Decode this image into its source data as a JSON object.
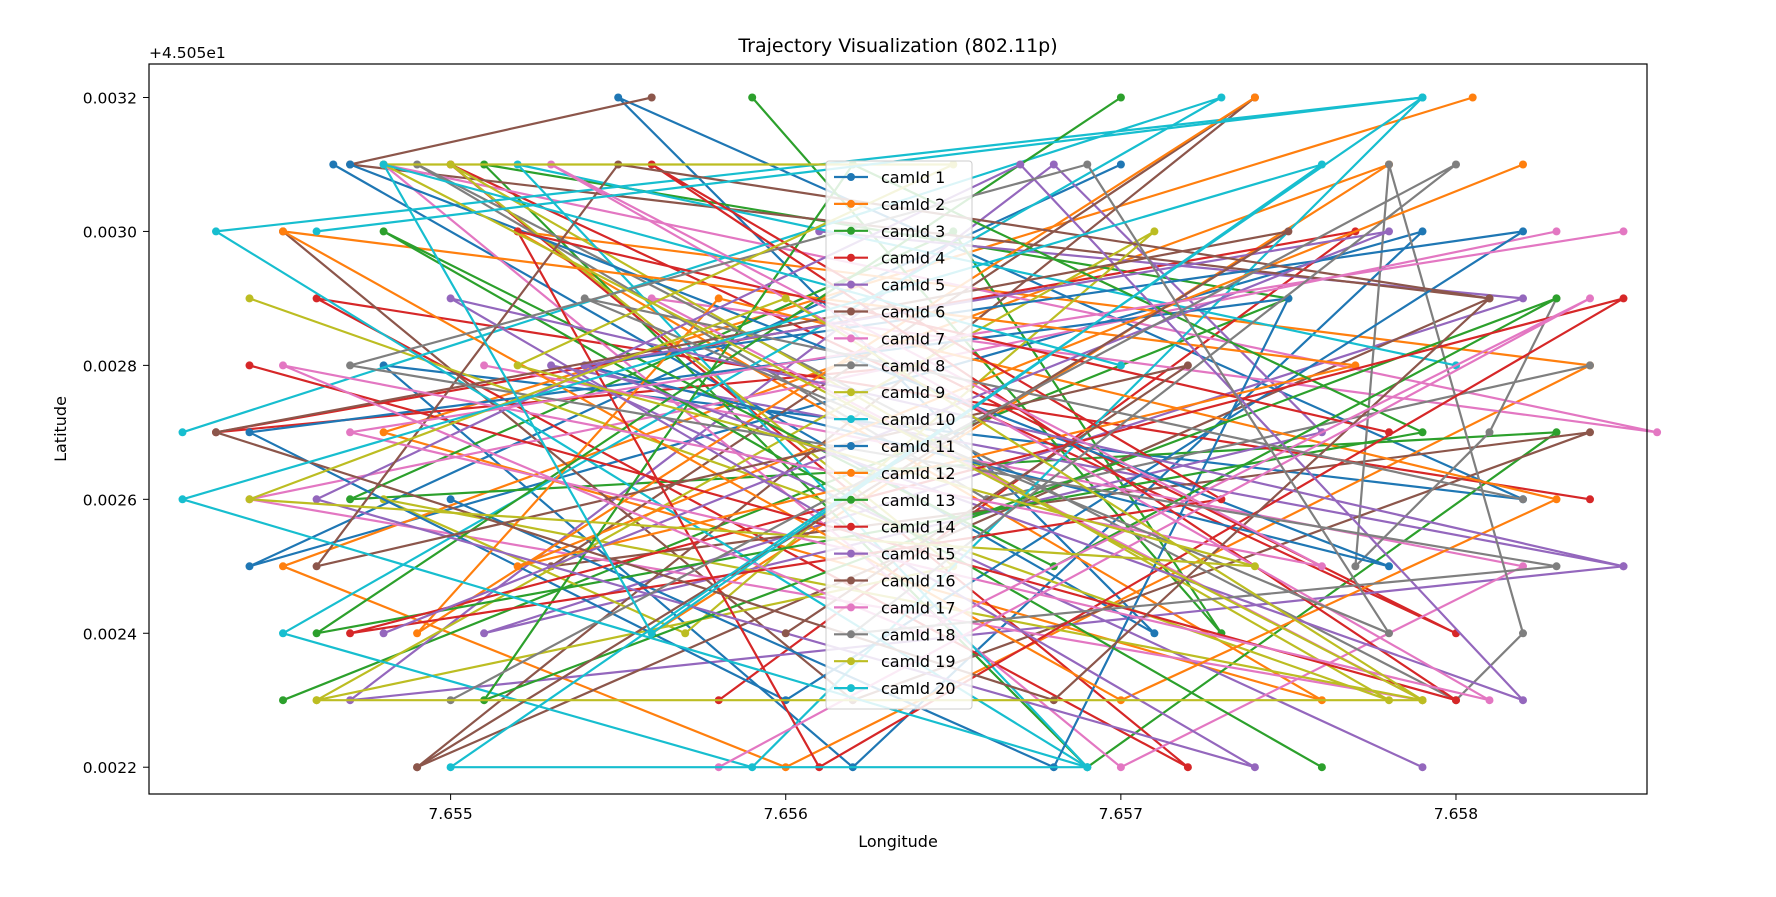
{
  "chart_data": {
    "type": "line",
    "title": "Trajectory Visualization (802.11p)",
    "xlabel": "Longitude",
    "ylabel": "Latitude",
    "y_offset_label": "+4.505e1",
    "xlim": [
      7.6541,
      7.65857
    ],
    "ylim": [
      0.00216,
      0.00325
    ],
    "xticks": [
      7.655,
      7.656,
      7.657,
      7.658
    ],
    "xtick_labels": [
      "7.655",
      "7.656",
      "7.657",
      "7.658"
    ],
    "yticks": [
      0.0022,
      0.0024,
      0.0026,
      0.0028,
      0.003,
      0.0032
    ],
    "ytick_labels": [
      "0.0022",
      "0.0024",
      "0.0026",
      "0.0028",
      "0.0030",
      "0.0032"
    ],
    "grid": false,
    "legend_position": "center",
    "series": [
      {
        "name": "camId 1",
        "color": "#1f77b4",
        "x": [
          7.65465,
          7.6571,
          7.6555,
          7.6582,
          7.6548,
          7.6562,
          7.6579,
          7.6544,
          7.657
        ],
        "y": [
          0.0031,
          0.0024,
          0.0032,
          0.0026,
          0.0028,
          0.0022,
          0.003,
          0.0025,
          0.0031
        ]
      },
      {
        "name": "camId 2",
        "color": "#ff7f0e",
        "x": [
          7.65805,
          7.6548,
          7.6576,
          7.6552,
          7.6584,
          7.656,
          7.6545,
          7.6578,
          7.6556
        ],
        "y": [
          0.0032,
          0.0027,
          0.0023,
          0.003,
          0.0028,
          0.0022,
          0.0025,
          0.0031,
          0.0024
        ]
      },
      {
        "name": "camId 3",
        "color": "#2ca02c",
        "x": [
          7.6545,
          7.6575,
          7.6551,
          7.6569,
          7.6583,
          7.6547,
          7.6565,
          7.6573,
          7.6559
        ],
        "y": [
          0.0023,
          0.0029,
          0.0031,
          0.0022,
          0.0027,
          0.0026,
          0.003,
          0.0024,
          0.0032
        ]
      },
      {
        "name": "camId 4",
        "color": "#d62728",
        "x": [
          7.6584,
          7.6546,
          7.6572,
          7.655,
          7.658,
          7.6564,
          7.6543,
          7.6577,
          7.6558
        ],
        "y": [
          0.0026,
          0.0029,
          0.0022,
          0.0031,
          0.0024,
          0.0028,
          0.0027,
          0.003,
          0.0023
        ]
      },
      {
        "name": "camId 5",
        "color": "#9467bd",
        "x": [
          7.6579,
          7.6553,
          7.6585,
          7.6547,
          7.6568,
          7.6576,
          7.6551,
          7.6582,
          7.6561
        ],
        "y": [
          0.0022,
          0.0028,
          0.0025,
          0.0023,
          0.0031,
          0.0027,
          0.0024,
          0.0029,
          0.003
        ]
      },
      {
        "name": "camId 6",
        "color": "#8c564b",
        "x": [
          7.6556,
          7.6547,
          7.6581,
          7.6549,
          7.6574,
          7.6553,
          7.6584,
          7.6562,
          7.6545
        ],
        "y": [
          0.0032,
          0.0031,
          0.0029,
          0.0022,
          0.0032,
          0.0025,
          0.0027,
          0.0023,
          0.003
        ]
      },
      {
        "name": "camId 7",
        "color": "#e377c2",
        "x": [
          7.6583,
          7.6544,
          7.6579,
          7.6556,
          7.6586,
          7.6548,
          7.657,
          7.6582,
          7.6551
        ],
        "y": [
          0.003,
          0.0026,
          0.0023,
          0.0029,
          0.0027,
          0.0031,
          0.0022,
          0.0025,
          0.0028
        ]
      },
      {
        "name": "camId 8",
        "color": "#7f7f7f",
        "x": [
          7.6583,
          7.6581,
          7.6577,
          7.6578,
          7.6582,
          7.658,
          7.6549,
          7.6566,
          7.6584
        ],
        "y": [
          0.0029,
          0.0027,
          0.0025,
          0.0031,
          0.0024,
          0.0023,
          0.0031,
          0.0026,
          0.0028
        ]
      },
      {
        "name": "camId 9",
        "color": "#bcbd22",
        "x": [
          7.6544,
          7.6578,
          7.655,
          7.6565,
          7.6546,
          7.6571,
          7.6557,
          7.6548,
          7.6579
        ],
        "y": [
          0.0029,
          0.0023,
          0.0031,
          0.0025,
          0.0023,
          0.003,
          0.0024,
          0.0026,
          0.0023
        ]
      },
      {
        "name": "camId 10",
        "color": "#17becf",
        "x": [
          7.6542,
          7.6573,
          7.6545,
          7.6559,
          7.6579,
          7.6543,
          7.6569,
          7.6552,
          7.658
        ],
        "y": [
          0.0027,
          0.0032,
          0.0024,
          0.0022,
          0.0032,
          0.003,
          0.0022,
          0.0031,
          0.0028
        ]
      },
      {
        "name": "camId 11",
        "color": "#1f77b4",
        "x": [
          7.6547,
          7.6578,
          7.6554,
          7.6582,
          7.656,
          7.6544,
          7.6575,
          7.6568,
          7.655
        ],
        "y": [
          0.0031,
          0.0025,
          0.0028,
          0.003,
          0.0023,
          0.0027,
          0.0029,
          0.0022,
          0.0026
        ]
      },
      {
        "name": "camId 12",
        "color": "#ff7f0e",
        "x": [
          7.6582,
          7.6552,
          7.6577,
          7.6545,
          7.657,
          7.6583,
          7.6558,
          7.6549,
          7.6574
        ],
        "y": [
          0.0031,
          0.0025,
          0.0028,
          0.003,
          0.0023,
          0.0026,
          0.0029,
          0.0024,
          0.0032
        ]
      },
      {
        "name": "camId 13",
        "color": "#2ca02c",
        "x": [
          7.6576,
          7.6548,
          7.6568,
          7.6583,
          7.6551,
          7.6562,
          7.6579,
          7.6546,
          7.657
        ],
        "y": [
          0.0022,
          0.003,
          0.0025,
          0.0029,
          0.0023,
          0.0031,
          0.0027,
          0.0024,
          0.0032
        ]
      },
      {
        "name": "camId 14",
        "color": "#d62728",
        "x": [
          7.6544,
          7.658,
          7.6556,
          7.6573,
          7.6547,
          7.6585,
          7.6561,
          7.6552,
          7.6578
        ],
        "y": [
          0.0028,
          0.0023,
          0.0031,
          0.0026,
          0.0024,
          0.0029,
          0.0022,
          0.003,
          0.0027
        ]
      },
      {
        "name": "camId 15",
        "color": "#9467bd",
        "x": [
          7.6585,
          7.655,
          7.6574,
          7.6546,
          7.6567,
          7.6582,
          7.6554,
          7.6578,
          7.6548
        ],
        "y": [
          0.0025,
          0.0029,
          0.0022,
          0.0026,
          0.0031,
          0.0023,
          0.0028,
          0.003,
          0.0024
        ]
      },
      {
        "name": "camId 16",
        "color": "#8c564b",
        "x": [
          7.6549,
          7.6575,
          7.6543,
          7.6568,
          7.6581,
          7.6555,
          7.6546,
          7.6572,
          7.656
        ],
        "y": [
          0.0022,
          0.003,
          0.0027,
          0.0023,
          0.0029,
          0.0031,
          0.0025,
          0.0028,
          0.0024
        ]
      },
      {
        "name": "camId 17",
        "color": "#e377c2",
        "x": [
          7.6585,
          7.6547,
          7.6581,
          7.6553,
          7.6576,
          7.6545,
          7.6564,
          7.6584,
          7.6558
        ],
        "y": [
          0.003,
          0.0027,
          0.0023,
          0.0031,
          0.0025,
          0.0028,
          0.0024,
          0.0029,
          0.0022
        ]
      },
      {
        "name": "camId 18",
        "color": "#7f7f7f",
        "x": [
          7.655,
          7.658,
          7.6562,
          7.6583,
          7.6547,
          7.6569,
          7.6578,
          7.6554,
          7.6582
        ],
        "y": [
          0.0023,
          0.0031,
          0.0024,
          0.0025,
          0.0028,
          0.0031,
          0.0024,
          0.0029,
          0.0026
        ]
      },
      {
        "name": "camId 19",
        "color": "#bcbd22",
        "x": [
          7.6546,
          7.6579,
          7.6548,
          7.6565,
          7.6552,
          7.6574,
          7.6544,
          7.656,
          7.6579
        ],
        "y": [
          0.0023,
          0.0023,
          0.0031,
          0.0031,
          0.0028,
          0.0025,
          0.0026,
          0.0029,
          0.0023
        ]
      },
      {
        "name": "camId 20",
        "color": "#17becf",
        "x": [
          7.6546,
          7.6579,
          7.655,
          7.6569,
          7.6542,
          7.6576,
          7.6556,
          7.6548,
          7.657
        ],
        "y": [
          0.003,
          0.0032,
          0.0022,
          0.0022,
          0.0026,
          0.0031,
          0.0024,
          0.0031,
          0.0028
        ]
      }
    ]
  }
}
